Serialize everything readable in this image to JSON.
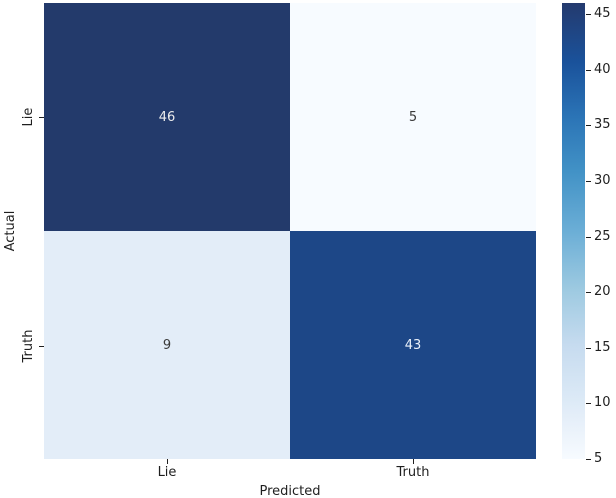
{
  "chart_data": {
    "type": "heatmap",
    "title": "",
    "xlabel": "Predicted",
    "ylabel": "Actual",
    "x_categories": [
      "Lie",
      "Truth"
    ],
    "y_categories": [
      "Lie",
      "Truth"
    ],
    "matrix": [
      [
        46,
        5
      ],
      [
        9,
        43
      ]
    ],
    "colormap": "Blues",
    "vmin": 5,
    "vmax": 46,
    "colorbar_ticks": [
      45,
      40,
      35,
      30,
      25,
      20,
      15,
      10,
      5
    ],
    "colorbar_position": "right",
    "grid": false,
    "cell_colors": [
      [
        "#233a6b",
        "#f7fbff"
      ],
      [
        "#e3edf8",
        "#1d4787"
      ]
    ],
    "cell_text_colors": [
      [
        "#ececec",
        "#3a3a3a"
      ],
      [
        "#3a3a3a",
        "#e9f0fa"
      ]
    ],
    "tick_color": "#1f1f1f",
    "background_color": "#ffffff"
  }
}
